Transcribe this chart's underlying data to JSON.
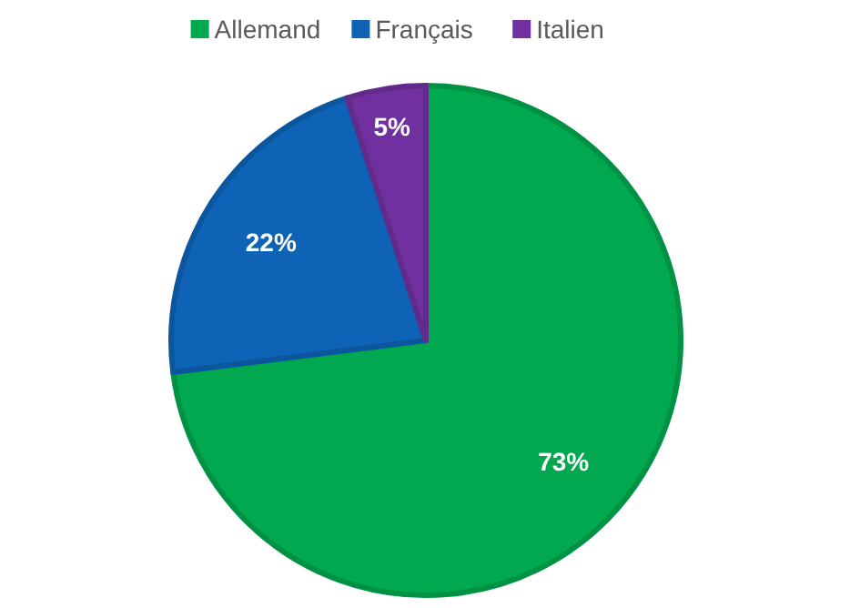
{
  "chart_data": {
    "type": "pie",
    "categories": [
      "Allemand",
      "Français",
      "Italien"
    ],
    "values": [
      73,
      22,
      5
    ],
    "colors": [
      "#00a84f",
      "#0e63b6",
      "#7030a0"
    ],
    "value_labels": [
      "73%",
      "22%",
      "5%"
    ],
    "legend": "top"
  }
}
